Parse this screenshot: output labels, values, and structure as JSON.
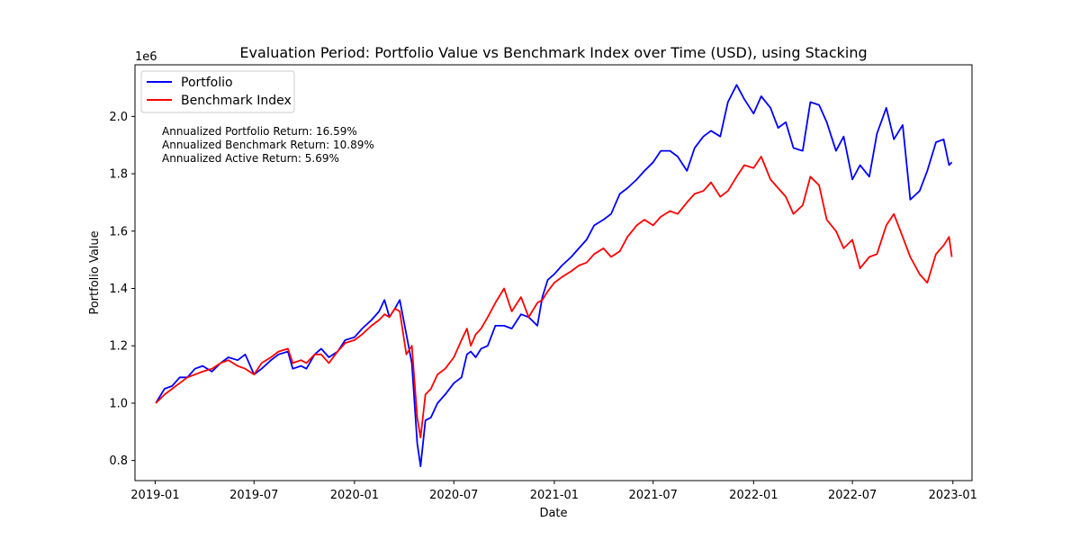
{
  "chart_data": {
    "type": "line",
    "title": "Evaluation Period: Portfolio Value vs Benchmark Index over Time (USD), using Stacking",
    "xlabel": "Date",
    "ylabel": "Portfolio Value",
    "y_offset_label": "1e6",
    "xlim": [
      "2018-11-25",
      "2023-02-05"
    ],
    "ylim": [
      0.73,
      2.18
    ],
    "x_ticks": [
      "2019-01",
      "2019-07",
      "2020-01",
      "2020-07",
      "2021-01",
      "2021-07",
      "2022-01",
      "2022-07",
      "2023-01"
    ],
    "y_ticks": [
      "0.8",
      "1.0",
      "1.2",
      "1.4",
      "1.6",
      "1.8",
      "2.0"
    ],
    "grid": false,
    "legend_position": "top-left",
    "annotations": [
      "Annualized Portfolio Return: 16.59%",
      "Annualized Benchmark Return: 10.89%",
      "Annualized Active Return: 5.69%"
    ],
    "series": [
      {
        "name": "Portfolio",
        "color": "#0000ff",
        "points": [
          [
            "2019-01-02",
            1.0
          ],
          [
            "2019-01-18",
            1.05
          ],
          [
            "2019-02-01",
            1.06
          ],
          [
            "2019-02-15",
            1.09
          ],
          [
            "2019-03-01",
            1.09
          ],
          [
            "2019-03-15",
            1.12
          ],
          [
            "2019-03-29",
            1.13
          ],
          [
            "2019-04-15",
            1.11
          ],
          [
            "2019-05-01",
            1.14
          ],
          [
            "2019-05-15",
            1.16
          ],
          [
            "2019-06-01",
            1.15
          ],
          [
            "2019-06-15",
            1.17
          ],
          [
            "2019-07-01",
            1.1
          ],
          [
            "2019-07-15",
            1.12
          ],
          [
            "2019-08-01",
            1.15
          ],
          [
            "2019-08-15",
            1.17
          ],
          [
            "2019-09-01",
            1.18
          ],
          [
            "2019-09-10",
            1.12
          ],
          [
            "2019-09-25",
            1.13
          ],
          [
            "2019-10-05",
            1.12
          ],
          [
            "2019-10-20",
            1.17
          ],
          [
            "2019-11-01",
            1.19
          ],
          [
            "2019-11-15",
            1.16
          ],
          [
            "2019-12-01",
            1.18
          ],
          [
            "2019-12-15",
            1.22
          ],
          [
            "2020-01-01",
            1.23
          ],
          [
            "2020-01-15",
            1.26
          ],
          [
            "2020-02-01",
            1.29
          ],
          [
            "2020-02-15",
            1.32
          ],
          [
            "2020-02-25",
            1.36
          ],
          [
            "2020-03-05",
            1.3
          ],
          [
            "2020-03-15",
            1.33
          ],
          [
            "2020-03-24",
            1.36
          ],
          [
            "2020-04-05",
            1.24
          ],
          [
            "2020-04-15",
            1.14
          ],
          [
            "2020-04-25",
            0.86
          ],
          [
            "2020-05-01",
            0.78
          ],
          [
            "2020-05-10",
            0.94
          ],
          [
            "2020-05-20",
            0.95
          ],
          [
            "2020-06-01",
            1.0
          ],
          [
            "2020-06-15",
            1.03
          ],
          [
            "2020-07-01",
            1.07
          ],
          [
            "2020-07-15",
            1.09
          ],
          [
            "2020-07-25",
            1.17
          ],
          [
            "2020-08-01",
            1.18
          ],
          [
            "2020-08-10",
            1.16
          ],
          [
            "2020-08-20",
            1.19
          ],
          [
            "2020-09-01",
            1.2
          ],
          [
            "2020-09-15",
            1.27
          ],
          [
            "2020-10-01",
            1.27
          ],
          [
            "2020-10-15",
            1.26
          ],
          [
            "2020-11-01",
            1.31
          ],
          [
            "2020-11-15",
            1.3
          ],
          [
            "2020-12-01",
            1.27
          ],
          [
            "2020-12-10",
            1.37
          ],
          [
            "2020-12-20",
            1.43
          ],
          [
            "2021-01-01",
            1.45
          ],
          [
            "2021-01-15",
            1.48
          ],
          [
            "2021-02-01",
            1.51
          ],
          [
            "2021-02-15",
            1.54
          ],
          [
            "2021-03-01",
            1.57
          ],
          [
            "2021-03-15",
            1.62
          ],
          [
            "2021-04-01",
            1.64
          ],
          [
            "2021-04-15",
            1.66
          ],
          [
            "2021-05-01",
            1.73
          ],
          [
            "2021-05-15",
            1.75
          ],
          [
            "2021-06-01",
            1.78
          ],
          [
            "2021-06-15",
            1.81
          ],
          [
            "2021-07-01",
            1.84
          ],
          [
            "2021-07-15",
            1.88
          ],
          [
            "2021-08-01",
            1.88
          ],
          [
            "2021-08-15",
            1.86
          ],
          [
            "2021-09-01",
            1.81
          ],
          [
            "2021-09-15",
            1.89
          ],
          [
            "2021-10-01",
            1.93
          ],
          [
            "2021-10-15",
            1.95
          ],
          [
            "2021-11-01",
            1.93
          ],
          [
            "2021-11-15",
            2.05
          ],
          [
            "2021-12-01",
            2.11
          ],
          [
            "2021-12-15",
            2.06
          ],
          [
            "2022-01-01",
            2.01
          ],
          [
            "2022-01-15",
            2.07
          ],
          [
            "2022-02-01",
            2.03
          ],
          [
            "2022-02-15",
            1.96
          ],
          [
            "2022-03-01",
            1.98
          ],
          [
            "2022-03-15",
            1.89
          ],
          [
            "2022-04-01",
            1.88
          ],
          [
            "2022-04-15",
            2.05
          ],
          [
            "2022-05-01",
            2.04
          ],
          [
            "2022-05-15",
            1.98
          ],
          [
            "2022-06-01",
            1.88
          ],
          [
            "2022-06-15",
            1.93
          ],
          [
            "2022-07-01",
            1.78
          ],
          [
            "2022-07-15",
            1.83
          ],
          [
            "2022-08-01",
            1.79
          ],
          [
            "2022-08-15",
            1.94
          ],
          [
            "2022-09-01",
            2.03
          ],
          [
            "2022-09-15",
            1.92
          ],
          [
            "2022-10-01",
            1.97
          ],
          [
            "2022-10-15",
            1.71
          ],
          [
            "2022-11-01",
            1.74
          ],
          [
            "2022-11-15",
            1.81
          ],
          [
            "2022-12-01",
            1.91
          ],
          [
            "2022-12-15",
            1.92
          ],
          [
            "2022-12-25",
            1.83
          ],
          [
            "2022-12-30",
            1.84
          ]
        ]
      },
      {
        "name": "Benchmark Index",
        "color": "#ff0000",
        "points": [
          [
            "2019-01-02",
            1.0
          ],
          [
            "2019-01-18",
            1.03
          ],
          [
            "2019-02-01",
            1.05
          ],
          [
            "2019-02-15",
            1.07
          ],
          [
            "2019-03-01",
            1.09
          ],
          [
            "2019-03-15",
            1.1
          ],
          [
            "2019-03-29",
            1.11
          ],
          [
            "2019-04-15",
            1.12
          ],
          [
            "2019-05-01",
            1.14
          ],
          [
            "2019-05-15",
            1.15
          ],
          [
            "2019-06-01",
            1.13
          ],
          [
            "2019-06-15",
            1.12
          ],
          [
            "2019-07-01",
            1.1
          ],
          [
            "2019-07-15",
            1.14
          ],
          [
            "2019-08-01",
            1.16
          ],
          [
            "2019-08-15",
            1.18
          ],
          [
            "2019-09-01",
            1.19
          ],
          [
            "2019-09-10",
            1.14
          ],
          [
            "2019-09-25",
            1.15
          ],
          [
            "2019-10-05",
            1.14
          ],
          [
            "2019-10-20",
            1.17
          ],
          [
            "2019-11-01",
            1.17
          ],
          [
            "2019-11-15",
            1.14
          ],
          [
            "2019-12-01",
            1.18
          ],
          [
            "2019-12-15",
            1.21
          ],
          [
            "2020-01-01",
            1.22
          ],
          [
            "2020-01-15",
            1.24
          ],
          [
            "2020-02-01",
            1.27
          ],
          [
            "2020-02-15",
            1.29
          ],
          [
            "2020-02-25",
            1.31
          ],
          [
            "2020-03-05",
            1.3
          ],
          [
            "2020-03-15",
            1.33
          ],
          [
            "2020-03-24",
            1.32
          ],
          [
            "2020-04-05",
            1.17
          ],
          [
            "2020-04-15",
            1.2
          ],
          [
            "2020-04-25",
            0.95
          ],
          [
            "2020-05-01",
            0.88
          ],
          [
            "2020-05-10",
            1.03
          ],
          [
            "2020-05-20",
            1.05
          ],
          [
            "2020-06-01",
            1.1
          ],
          [
            "2020-06-15",
            1.12
          ],
          [
            "2020-07-01",
            1.16
          ],
          [
            "2020-07-15",
            1.22
          ],
          [
            "2020-07-25",
            1.26
          ],
          [
            "2020-08-01",
            1.2
          ],
          [
            "2020-08-10",
            1.24
          ],
          [
            "2020-08-20",
            1.26
          ],
          [
            "2020-09-01",
            1.3
          ],
          [
            "2020-09-15",
            1.35
          ],
          [
            "2020-10-01",
            1.4
          ],
          [
            "2020-10-15",
            1.32
          ],
          [
            "2020-11-01",
            1.37
          ],
          [
            "2020-11-15",
            1.3
          ],
          [
            "2020-12-01",
            1.35
          ],
          [
            "2020-12-10",
            1.36
          ],
          [
            "2020-12-20",
            1.39
          ],
          [
            "2021-01-01",
            1.42
          ],
          [
            "2021-01-15",
            1.44
          ],
          [
            "2021-02-01",
            1.46
          ],
          [
            "2021-02-15",
            1.48
          ],
          [
            "2021-03-01",
            1.49
          ],
          [
            "2021-03-15",
            1.52
          ],
          [
            "2021-04-01",
            1.54
          ],
          [
            "2021-04-15",
            1.51
          ],
          [
            "2021-05-01",
            1.53
          ],
          [
            "2021-05-15",
            1.58
          ],
          [
            "2021-06-01",
            1.62
          ],
          [
            "2021-06-15",
            1.64
          ],
          [
            "2021-07-01",
            1.62
          ],
          [
            "2021-07-15",
            1.65
          ],
          [
            "2021-08-01",
            1.67
          ],
          [
            "2021-08-15",
            1.66
          ],
          [
            "2021-09-01",
            1.7
          ],
          [
            "2021-09-15",
            1.73
          ],
          [
            "2021-10-01",
            1.74
          ],
          [
            "2021-10-15",
            1.77
          ],
          [
            "2021-11-01",
            1.72
          ],
          [
            "2021-11-15",
            1.74
          ],
          [
            "2021-12-01",
            1.79
          ],
          [
            "2021-12-15",
            1.83
          ],
          [
            "2022-01-01",
            1.82
          ],
          [
            "2022-01-15",
            1.86
          ],
          [
            "2022-02-01",
            1.78
          ],
          [
            "2022-02-15",
            1.75
          ],
          [
            "2022-03-01",
            1.72
          ],
          [
            "2022-03-15",
            1.66
          ],
          [
            "2022-04-01",
            1.69
          ],
          [
            "2022-04-15",
            1.79
          ],
          [
            "2022-05-01",
            1.76
          ],
          [
            "2022-05-15",
            1.64
          ],
          [
            "2022-06-01",
            1.6
          ],
          [
            "2022-06-15",
            1.54
          ],
          [
            "2022-07-01",
            1.57
          ],
          [
            "2022-07-15",
            1.47
          ],
          [
            "2022-08-01",
            1.51
          ],
          [
            "2022-08-15",
            1.52
          ],
          [
            "2022-09-01",
            1.62
          ],
          [
            "2022-09-15",
            1.66
          ],
          [
            "2022-10-01",
            1.58
          ],
          [
            "2022-10-15",
            1.51
          ],
          [
            "2022-11-01",
            1.45
          ],
          [
            "2022-11-15",
            1.42
          ],
          [
            "2022-12-01",
            1.52
          ],
          [
            "2022-12-15",
            1.55
          ],
          [
            "2022-12-25",
            1.58
          ],
          [
            "2022-12-30",
            1.51
          ]
        ]
      }
    ]
  }
}
